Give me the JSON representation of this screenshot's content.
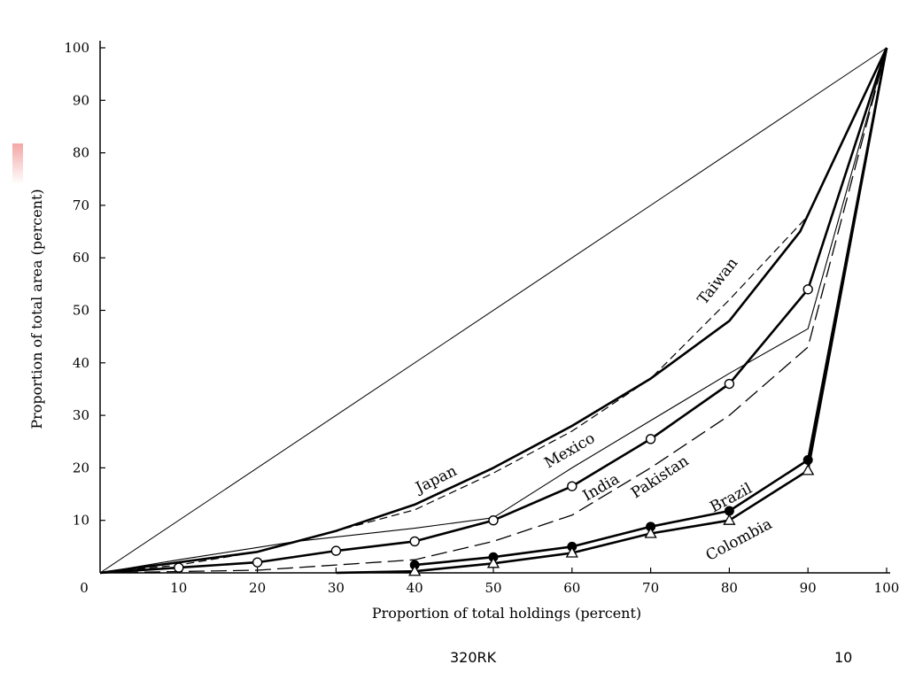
{
  "slide": {
    "footer_center": "320RK",
    "page_number": "10",
    "accent_color": "#f3a6a6"
  },
  "chart_data": {
    "type": "line",
    "title": "",
    "xlabel": "Proportion of total holdings (percent)",
    "ylabel": "Proportion of total area (percent)",
    "xlim": [
      0,
      100
    ],
    "ylim": [
      0,
      100
    ],
    "x_ticks": [
      10,
      20,
      30,
      40,
      50,
      60,
      70,
      80,
      90,
      100
    ],
    "y_ticks": [
      10,
      20,
      30,
      40,
      50,
      60,
      70,
      80,
      90,
      100
    ],
    "origin_label": "0",
    "grid": false,
    "legend": "none (series labelled directly on the lines)",
    "equality_line": {
      "x": [
        0,
        100
      ],
      "y": [
        0,
        100
      ]
    },
    "series": [
      {
        "name": "Japan",
        "style": "thick-solid",
        "x": [
          0,
          10,
          20,
          30,
          40,
          50,
          55,
          60,
          70,
          80,
          89,
          100
        ],
        "y": [
          0,
          2,
          4,
          8,
          13,
          20,
          24,
          28,
          37,
          48,
          65,
          100
        ],
        "label_pos": [
          43,
          17
        ],
        "label_angle": -26
      },
      {
        "name": "Taiwan",
        "style": "dashed",
        "x": [
          0,
          10,
          20,
          30,
          40,
          50,
          60,
          70,
          80,
          90,
          100
        ],
        "y": [
          0,
          1.5,
          4,
          8,
          12,
          19,
          27,
          37,
          52,
          68,
          100
        ],
        "label_pos": [
          79,
          55
        ],
        "label_angle": -52
      },
      {
        "name": "Mexico",
        "style": "thin-solid",
        "x": [
          0,
          10,
          25,
          40,
          50,
          60,
          70,
          80,
          90,
          100
        ],
        "y": [
          0,
          2.5,
          6,
          8.5,
          10.5,
          20,
          29,
          38,
          46.5,
          100
        ],
        "label_pos": [
          60,
          22.5
        ],
        "label_angle": -30
      },
      {
        "name": "India",
        "style": "thick-solid-open-circles",
        "x": [
          0,
          10,
          20,
          30,
          40,
          50,
          60,
          70,
          80,
          90,
          100
        ],
        "y": [
          0,
          1,
          2,
          4.2,
          6,
          10,
          16.5,
          25.5,
          36,
          54,
          100
        ],
        "label_pos": [
          64,
          15.5
        ],
        "label_angle": -30
      },
      {
        "name": "Pakistan",
        "style": "long-dashed",
        "x": [
          0,
          20,
          30,
          40,
          50,
          60,
          70,
          80,
          90,
          100
        ],
        "y": [
          0,
          0.5,
          1.5,
          2.5,
          6,
          11,
          20,
          30,
          43,
          100
        ],
        "label_pos": [
          71.5,
          17.5
        ],
        "label_angle": -33
      },
      {
        "name": "Brazil",
        "style": "thick-solid-filled-circles",
        "x": [
          40,
          50,
          60,
          70,
          80,
          90,
          100
        ],
        "y": [
          1.5,
          3,
          5,
          8.8,
          11.8,
          21.5,
          100
        ],
        "label_pos": [
          80.5,
          13.5
        ],
        "label_angle": -28
      },
      {
        "name": "Colombia",
        "style": "thick-solid-open-triangles",
        "x": [
          30,
          40,
          50,
          60,
          70,
          80,
          90,
          100
        ],
        "y": [
          0,
          0.3,
          1.8,
          3.8,
          7.5,
          10,
          19.5,
          100
        ],
        "label_pos": [
          81.5,
          5.5
        ],
        "label_angle": -28
      }
    ]
  }
}
